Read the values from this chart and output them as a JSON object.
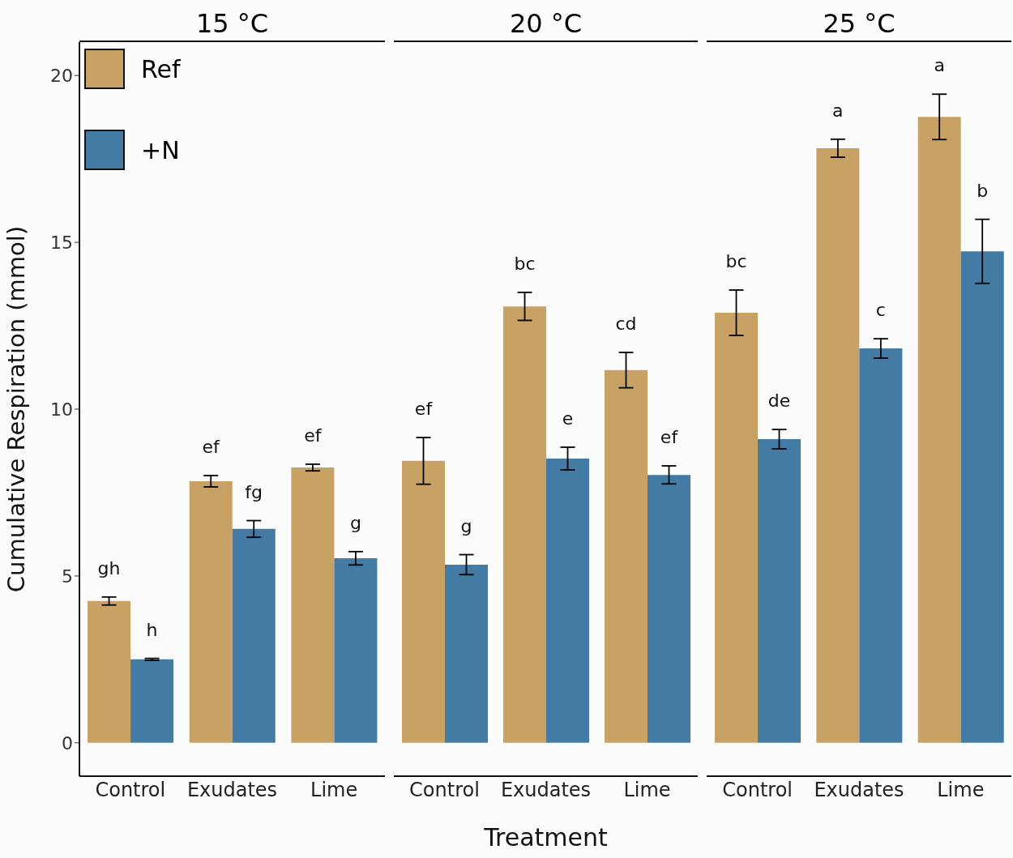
{
  "chart_data": [
    {
      "type": "bar",
      "title": "15 °C",
      "categories": [
        "Control",
        "Exudates",
        "Lime"
      ],
      "ylabel": "Cumulative Respiration (mmol)",
      "ylim": [
        -1,
        21
      ],
      "yticks": [
        0,
        5,
        10,
        15,
        20
      ],
      "legend": "top left",
      "series": [
        {
          "name": "Ref",
          "color": "#c8a265",
          "values": [
            4.25,
            7.84,
            8.25
          ],
          "errors": [
            0.12,
            0.17,
            0.1
          ],
          "value_labels": [
            "gh",
            "ef",
            "ef"
          ]
        },
        {
          "name": "+N",
          "color": "#437ba5",
          "values": [
            2.5,
            6.41,
            5.53
          ],
          "errors": [
            0.03,
            0.25,
            0.2
          ],
          "value_labels": [
            "h",
            "fg",
            "g"
          ]
        }
      ]
    },
    {
      "type": "bar",
      "title": "20 °C",
      "categories": [
        "Control",
        "Exudates",
        "Lime"
      ],
      "xlabel": "Treatment",
      "ylim": [
        -1,
        21
      ],
      "yticks": [
        0,
        5,
        10,
        15,
        20
      ],
      "tick_labels": "x",
      "series": [
        {
          "color": "#c8a265",
          "values": [
            8.45,
            13.08,
            11.17
          ],
          "errors": [
            0.7,
            0.42,
            0.53
          ],
          "value_labels": [
            "ef",
            "bc",
            "cd"
          ]
        },
        {
          "color": "#437ba5",
          "values": [
            5.34,
            8.52,
            8.03
          ],
          "errors": [
            0.3,
            0.34,
            0.27
          ],
          "value_labels": [
            "g",
            "e",
            "ef"
          ]
        }
      ]
    },
    {
      "type": "bar",
      "title": "25 °C",
      "categories": [
        "Control",
        "Exudates",
        "Lime"
      ],
      "ylim": [
        -1,
        21
      ],
      "yticks": [
        0,
        5,
        10,
        15,
        20
      ],
      "tick_labels": "x",
      "series": [
        {
          "color": "#c8a265",
          "values": [
            12.89,
            17.82,
            18.76
          ],
          "errors": [
            0.68,
            0.27,
            0.68
          ],
          "value_labels": [
            "bc",
            "a",
            "a"
          ]
        },
        {
          "color": "#437ba5",
          "values": [
            9.1,
            11.82,
            14.73
          ],
          "errors": [
            0.29,
            0.29,
            0.96
          ],
          "value_labels": [
            "de",
            "c",
            "b"
          ]
        }
      ]
    }
  ]
}
